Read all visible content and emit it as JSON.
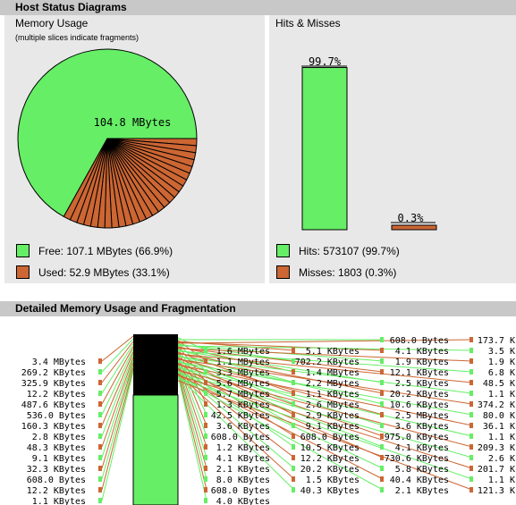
{
  "header": {
    "title": "Host Status Diagrams"
  },
  "memory_panel": {
    "title": "Memory Usage",
    "subtitle": "(multiple slices indicate fragments)",
    "pie_label": "104.8 MBytes",
    "legend": [
      {
        "label": "Free: 107.1 MBytes (66.9%)",
        "color": "#66ee66"
      },
      {
        "label": "Used: 52.9 MBytes (33.1%)",
        "color": "#cc6633"
      }
    ]
  },
  "hits_panel": {
    "title": "Hits & Misses",
    "hits_value_label": "99.7%",
    "misses_value_label": "0.3%",
    "legend": [
      {
        "label": "Hits: 573107 (99.7%)",
        "color": "#66ee66"
      },
      {
        "label": "Misses: 1803 (0.3%)",
        "color": "#cc6633"
      }
    ]
  },
  "detail": {
    "title": "Detailed Memory Usage and Fragmentation",
    "col1": [
      "3.4 MBytes",
      "269.2 KBytes",
      "325.9 KBytes",
      "12.2 KBytes",
      "487.6 KBytes",
      "536.0 Bytes",
      "160.3 KBytes",
      "2.8 KBytes",
      "48.3 KBytes",
      "9.1 KBytes",
      "32.3 KBytes",
      "608.0 Bytes",
      "12.2 KBytes",
      "1.1 KBytes"
    ],
    "col2": [
      "1.6 MBytes",
      "1.1 MBytes",
      "3.3 MBytes",
      "5.6 MBytes",
      "5.7 MBytes",
      "1.3 KBytes",
      "42.5 KBytes",
      "3.6 KBytes",
      "608.0 Bytes",
      "1.2 KBytes",
      "4.1 KBytes",
      "2.1 KBytes",
      "8.0 KBytes",
      "608.0 Bytes",
      "4.0 KBytes"
    ],
    "col3": [
      "5.1 KBytes",
      "702.2 KBytes",
      "1.4 MBytes",
      "2.2 MBytes",
      "1.1 KBytes",
      "2.6 MBytes",
      "2.9 KBytes",
      "9.1 KBytes",
      "608.0 Bytes",
      "10.5 KBytes",
      "12.2 KBytes",
      "20.2 KBytes",
      "1.5 KBytes",
      "40.3 KBytes"
    ],
    "col4": [
      "608.0 Bytes",
      "4.1 KBytes",
      "1.9 KBytes",
      "12.1 KBytes",
      "2.5 KBytes",
      "20.2 KBytes",
      "10.6 KBytes",
      "2.5 MBytes",
      "3.6 KBytes",
      "975.0 KBytes",
      "4.1 KBytes",
      "730.6 KBytes",
      "5.8 KBytes",
      "40.4 KBytes",
      "2.1 KBytes"
    ],
    "col5": [
      "173.7 K",
      "3.5 K",
      "1.9 K",
      "6.8 K",
      "48.5 K",
      "1.1 K",
      "374.2 K",
      "80.0 K",
      "36.1 K",
      "1.1 K",
      "209.3 K",
      "2.6 K",
      "201.7 K",
      "1.1 K",
      "121.3 K"
    ]
  },
  "chart_data": [
    {
      "type": "pie",
      "title": "Memory Usage",
      "categories": [
        "Free",
        "Used"
      ],
      "values": [
        66.9,
        33.1
      ],
      "slice_label": "104.8 MBytes"
    },
    {
      "type": "bar",
      "title": "Hits & Misses",
      "categories": [
        "Hits",
        "Misses"
      ],
      "values": [
        99.7,
        0.3
      ],
      "ylim": [
        0,
        100
      ]
    }
  ],
  "colors": {
    "free": "#66ee66",
    "used": "#cc6633",
    "panel_bg": "#e8e8e8",
    "header_bg": "#c8c8c8"
  }
}
